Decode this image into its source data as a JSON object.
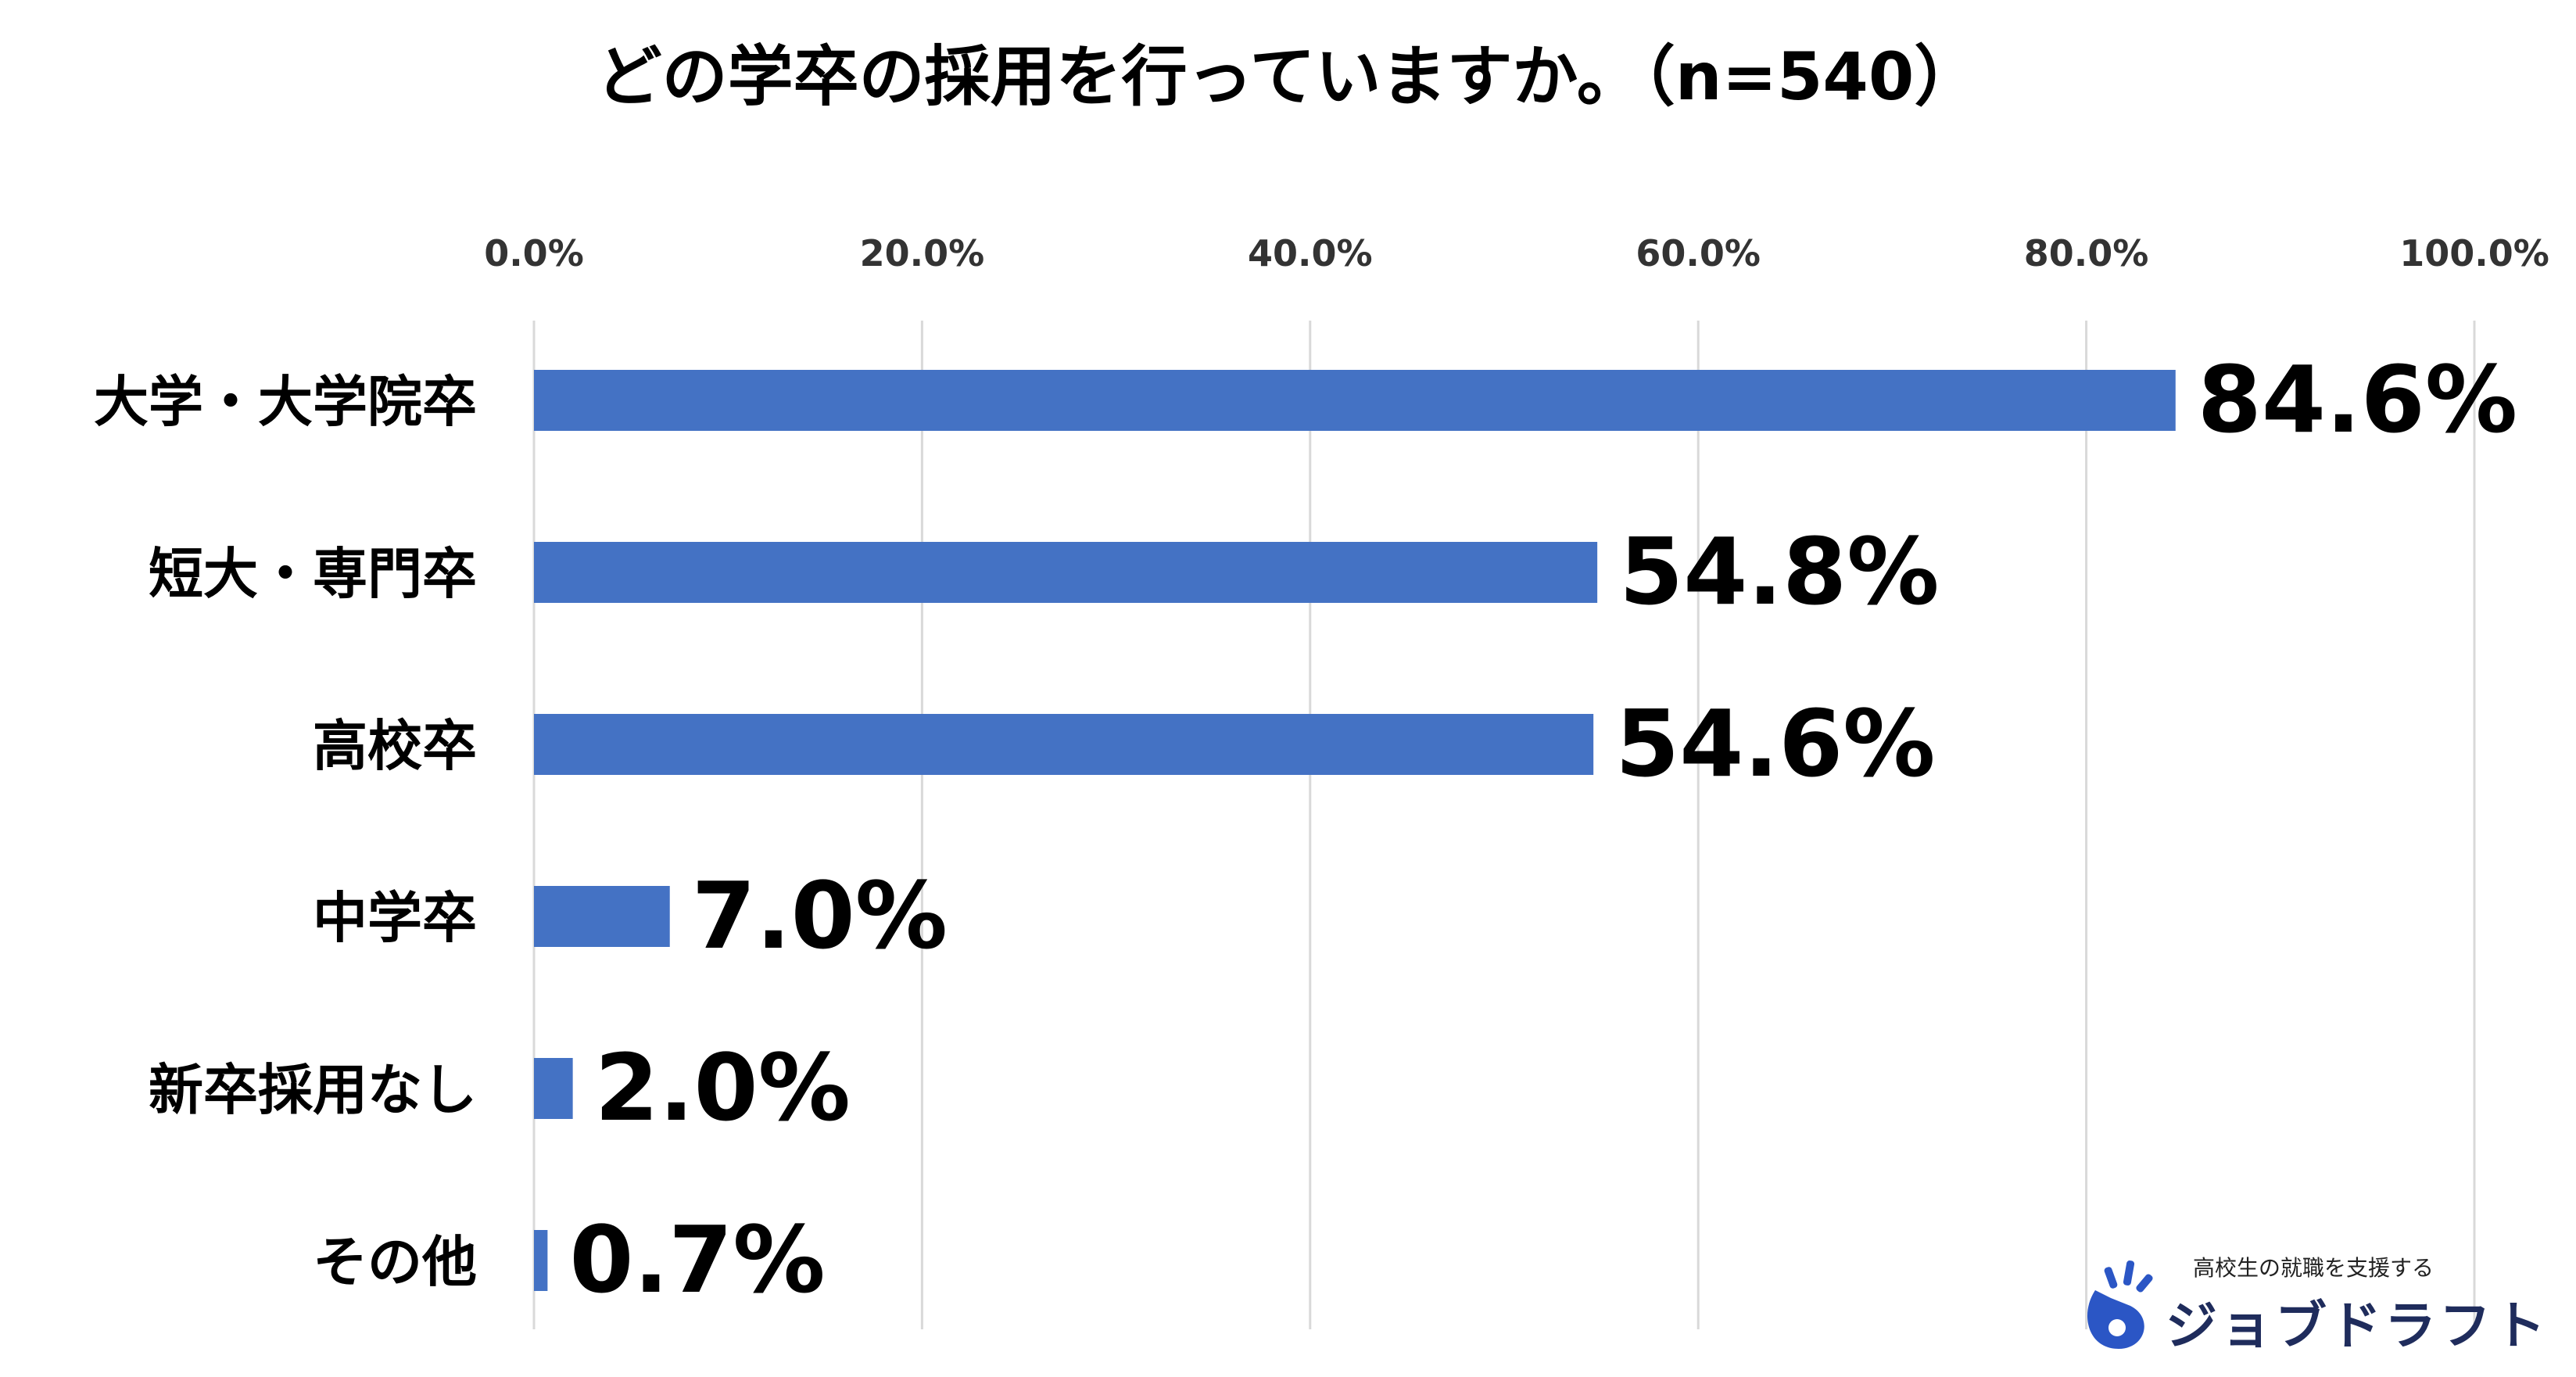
{
  "title": "どの学卒の採用を行っていますか。（n=540）",
  "chart_data": {
    "type": "bar",
    "orientation": "horizontal",
    "title": "どの学卒の採用を行っていますか。（n=540）",
    "xlabel": "",
    "ylabel": "",
    "xlim": [
      0,
      100
    ],
    "x_ticks": [
      "0.0%",
      "20.0%",
      "40.0%",
      "60.0%",
      "80.0%",
      "100.0%"
    ],
    "x_tick_values": [
      0,
      20,
      40,
      60,
      80,
      100
    ],
    "x_axis_position": "top",
    "grid": true,
    "legend": "none",
    "categories": [
      "大学・大学院卒",
      "短大・専門卒",
      "高校卒",
      "中学卒",
      "新卒採用なし",
      "その他"
    ],
    "values": [
      84.6,
      54.8,
      54.6,
      7.0,
      2.0,
      0.7
    ],
    "labels": [
      "84.6%",
      "54.8%",
      "54.6%",
      "7.0%",
      "2.0%",
      "0.7%"
    ],
    "colors": {
      "bar": "#4472C4",
      "grid": "#D9D9D9",
      "text": "#000000"
    }
  },
  "brand": {
    "tagline": "高校生の就職を支援する",
    "name": "ジョブドラフト",
    "mark_icon": "jobdraft-logo-icon",
    "colors": {
      "mark": "#2b56c5",
      "name": "#1f2c5c"
    }
  }
}
